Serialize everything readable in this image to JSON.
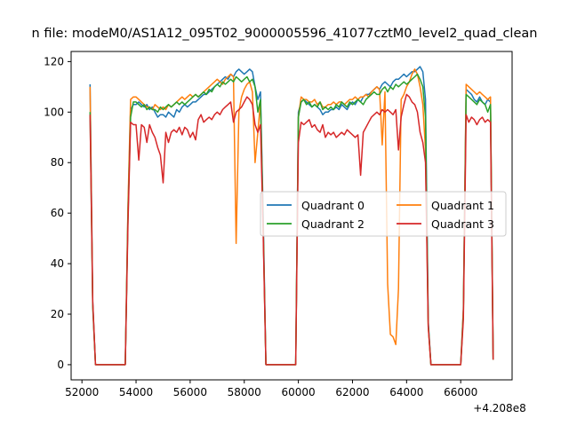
{
  "chart_data": {
    "type": "line",
    "title": "n file: modeM0/AS1A12_095T02_9000005596_41077cztM0_level2_quad_clean",
    "xlabel": "",
    "ylabel": "",
    "x_offset_label": "+4.208e8",
    "xlim": [
      51600,
      67900
    ],
    "ylim": [
      -6,
      124
    ],
    "xticks": [
      52000,
      54000,
      56000,
      58000,
      60000,
      62000,
      64000,
      66000
    ],
    "xtick_labels": [
      "52000",
      "54000",
      "56000",
      "58000",
      "60000",
      "62000",
      "64000",
      "66000"
    ],
    "yticks": [
      0,
      20,
      40,
      60,
      80,
      100,
      120
    ],
    "ytick_labels": [
      "0",
      "20",
      "40",
      "60",
      "80",
      "100",
      "120"
    ],
    "grid": false,
    "legend_position": "center-right",
    "legend_columns": 2,
    "series": [
      {
        "name": "Quadrant 0",
        "color": "#1f77b4",
        "x": [
          52300,
          52400,
          52500,
          53000,
          53600,
          53700,
          53800,
          53900,
          54000,
          54100,
          54200,
          54300,
          54400,
          54500,
          54600,
          54700,
          54800,
          54900,
          55000,
          55100,
          55200,
          55300,
          55400,
          55500,
          55600,
          55700,
          55800,
          55900,
          56000,
          56100,
          56200,
          56300,
          56400,
          56500,
          56600,
          56700,
          56800,
          56900,
          57000,
          57100,
          57200,
          57300,
          57400,
          57500,
          57600,
          57700,
          57800,
          57900,
          58000,
          58100,
          58200,
          58300,
          58400,
          58500,
          58600,
          58700,
          58800,
          59900,
          60000,
          60100,
          60200,
          60300,
          60400,
          60500,
          60600,
          60700,
          60800,
          60900,
          61000,
          61100,
          61200,
          61300,
          61400,
          61500,
          61600,
          61700,
          61800,
          61900,
          62000,
          62100,
          62200,
          62300,
          62400,
          62500,
          62600,
          62700,
          62800,
          62900,
          63000,
          63100,
          63200,
          63300,
          63400,
          63500,
          63600,
          63700,
          63800,
          63900,
          64000,
          64100,
          64200,
          64300,
          64400,
          64500,
          64600,
          64700,
          64800,
          64900,
          65000,
          65100,
          65200,
          66000,
          66100,
          66200,
          66300,
          66400,
          66500,
          66600,
          66700,
          66800,
          66900,
          67000,
          67100,
          67200
        ],
        "values": [
          111,
          25,
          0,
          0,
          0,
          60,
          101,
          103,
          103,
          104,
          103,
          102,
          103,
          101,
          102,
          100,
          98,
          99,
          99,
          98,
          100,
          99,
          98,
          101,
          100,
          102,
          103,
          102,
          103,
          104,
          104,
          105,
          106,
          107,
          107,
          108,
          109,
          110,
          111,
          112,
          113,
          114,
          113,
          115,
          114,
          116,
          117,
          116,
          115,
          116,
          117,
          116,
          110,
          105,
          108,
          60,
          0,
          0,
          100,
          104,
          105,
          104,
          103,
          102,
          103,
          102,
          101,
          99,
          100,
          100,
          101,
          101,
          102,
          101,
          103,
          102,
          101,
          103,
          104,
          103,
          105,
          104,
          106,
          107,
          107,
          108,
          109,
          110,
          109,
          111,
          112,
          111,
          110,
          112,
          113,
          113,
          114,
          115,
          114,
          115,
          116,
          116,
          117,
          118,
          116,
          105,
          17,
          0,
          0,
          0,
          0,
          0,
          22,
          109,
          108,
          107,
          105,
          104,
          106,
          104,
          103,
          105,
          104,
          2
        ],
        "style": "solid"
      },
      {
        "name": "Quadrant 1",
        "color": "#ff7f0e",
        "x": [
          52300,
          52400,
          52500,
          53000,
          53600,
          53700,
          53800,
          53900,
          54000,
          54100,
          54200,
          54300,
          54400,
          54500,
          54600,
          54700,
          54800,
          54900,
          55000,
          55100,
          55200,
          55300,
          55400,
          55500,
          55600,
          55700,
          55800,
          55900,
          56000,
          56100,
          56200,
          56300,
          56400,
          56500,
          56600,
          56700,
          56800,
          56900,
          57000,
          57100,
          57200,
          57300,
          57400,
          57500,
          57600,
          57700,
          57800,
          57900,
          58000,
          58100,
          58200,
          58300,
          58400,
          58500,
          58600,
          58700,
          58800,
          59900,
          60000,
          60100,
          60200,
          60300,
          60400,
          60500,
          60600,
          60700,
          60800,
          60900,
          61000,
          61100,
          61200,
          61300,
          61400,
          61500,
          61600,
          61700,
          61800,
          61900,
          62000,
          62100,
          62200,
          62300,
          62400,
          62500,
          62600,
          62700,
          62800,
          62900,
          63000,
          63100,
          63200,
          63300,
          63400,
          63500,
          63600,
          63700,
          63800,
          63900,
          64000,
          64100,
          64200,
          64300,
          64400,
          64500,
          64600,
          64700,
          64800,
          64900,
          65000,
          65100,
          65200,
          66000,
          66100,
          66200,
          66300,
          66400,
          66500,
          66600,
          66700,
          66800,
          66900,
          67000,
          67100,
          67200
        ],
        "values": [
          110,
          24,
          0,
          0,
          0,
          62,
          105,
          106,
          106,
          105,
          104,
          103,
          102,
          102,
          101,
          103,
          102,
          101,
          102,
          101,
          103,
          102,
          103,
          104,
          105,
          106,
          105,
          106,
          107,
          106,
          107,
          106,
          107,
          108,
          109,
          110,
          111,
          112,
          113,
          112,
          111,
          113,
          114,
          115,
          114,
          48,
          100,
          106,
          109,
          111,
          112,
          108,
          80,
          92,
          104,
          55,
          0,
          0,
          98,
          106,
          105,
          105,
          104,
          104,
          105,
          103,
          104,
          102,
          102,
          103,
          103,
          104,
          103,
          104,
          104,
          103,
          104,
          105,
          105,
          106,
          105,
          106,
          106,
          107,
          106,
          108,
          109,
          110,
          109,
          87,
          108,
          32,
          12,
          11,
          8,
          30,
          105,
          107,
          110,
          112,
          115,
          117,
          115,
          110,
          103,
          85,
          15,
          0,
          0,
          0,
          0,
          0,
          22,
          111,
          110,
          109,
          108,
          107,
          108,
          107,
          106,
          105,
          106,
          2
        ],
        "style": "solid"
      },
      {
        "name": "Quadrant 2",
        "color": "#2ca02c",
        "x": [
          52300,
          52400,
          52500,
          53000,
          53600,
          53700,
          53800,
          53900,
          54000,
          54100,
          54200,
          54300,
          54400,
          54500,
          54600,
          54700,
          54800,
          54900,
          55000,
          55100,
          55200,
          55300,
          55400,
          55500,
          55600,
          55700,
          55800,
          55900,
          56000,
          56100,
          56200,
          56300,
          56400,
          56500,
          56600,
          56700,
          56800,
          56900,
          57000,
          57100,
          57200,
          57300,
          57400,
          57500,
          57600,
          57700,
          57800,
          57900,
          58000,
          58100,
          58200,
          58300,
          58400,
          58500,
          58600,
          58700,
          58800,
          59900,
          60000,
          60100,
          60200,
          60300,
          60400,
          60500,
          60600,
          60700,
          60800,
          60900,
          61000,
          61100,
          61200,
          61300,
          61400,
          61500,
          61600,
          61700,
          61800,
          61900,
          62000,
          62100,
          62200,
          62300,
          62400,
          62500,
          62600,
          62700,
          62800,
          62900,
          63000,
          63100,
          63200,
          63300,
          63400,
          63500,
          63600,
          63700,
          63800,
          63900,
          64000,
          64100,
          64200,
          64300,
          64400,
          64500,
          64600,
          64700,
          64800,
          64900,
          65000,
          65100,
          65200,
          66000,
          66100,
          66200,
          66300,
          66400,
          66500,
          66600,
          66700,
          66800,
          66900,
          67000,
          67100,
          67200
        ],
        "values": [
          100,
          23,
          0,
          0,
          0,
          58,
          98,
          104,
          104,
          103,
          102,
          103,
          101,
          102,
          101,
          101,
          100,
          102,
          101,
          102,
          103,
          102,
          103,
          104,
          103,
          104,
          103,
          104,
          105,
          106,
          107,
          106,
          107,
          108,
          107,
          109,
          108,
          110,
          111,
          110,
          112,
          111,
          112,
          113,
          112,
          114,
          113,
          112,
          113,
          114,
          112,
          113,
          110,
          100,
          105,
          55,
          0,
          0,
          98,
          104,
          105,
          103,
          104,
          102,
          103,
          102,
          104,
          101,
          102,
          101,
          102,
          101,
          103,
          102,
          104,
          103,
          102,
          104,
          103,
          104,
          105,
          104,
          103,
          105,
          106,
          107,
          108,
          107,
          107,
          109,
          110,
          108,
          110,
          109,
          111,
          110,
          111,
          112,
          111,
          112,
          113,
          114,
          115,
          113,
          110,
          98,
          16,
          0,
          0,
          0,
          0,
          0,
          20,
          107,
          106,
          105,
          104,
          103,
          105,
          104,
          103,
          100,
          103,
          2
        ],
        "style": "solid"
      },
      {
        "name": "Quadrant 3",
        "color": "#d62728",
        "x": [
          52300,
          52400,
          52500,
          53000,
          53600,
          53700,
          53800,
          53900,
          54000,
          54100,
          54200,
          54300,
          54400,
          54500,
          54600,
          54700,
          54800,
          54900,
          55000,
          55100,
          55200,
          55300,
          55400,
          55500,
          55600,
          55700,
          55800,
          55900,
          56000,
          56100,
          56200,
          56300,
          56400,
          56500,
          56600,
          56700,
          56800,
          56900,
          57000,
          57100,
          57200,
          57300,
          57400,
          57500,
          57600,
          57700,
          57800,
          57900,
          58000,
          58100,
          58200,
          58300,
          58400,
          58500,
          58600,
          58700,
          58800,
          59900,
          60000,
          60100,
          60200,
          60300,
          60400,
          60500,
          60600,
          60700,
          60800,
          60900,
          61000,
          61100,
          61200,
          61300,
          61400,
          61500,
          61600,
          61700,
          61800,
          61900,
          62000,
          62100,
          62200,
          62300,
          62400,
          62500,
          62600,
          62700,
          62800,
          62900,
          63000,
          63100,
          63200,
          63300,
          63400,
          63500,
          63600,
          63700,
          63800,
          63900,
          64000,
          64100,
          64200,
          64300,
          64400,
          64500,
          64600,
          64700,
          64800,
          64900,
          65000,
          65100,
          65200,
          66000,
          66100,
          66200,
          66300,
          66400,
          66500,
          66600,
          66700,
          66800,
          66900,
          67000,
          67100,
          67200
        ],
        "values": [
          99,
          25,
          0,
          0,
          0,
          55,
          96,
          95,
          95,
          81,
          95,
          94,
          88,
          95,
          92,
          90,
          86,
          83,
          72,
          92,
          88,
          92,
          93,
          92,
          94,
          91,
          94,
          93,
          90,
          92,
          89,
          97,
          99,
          96,
          97,
          98,
          97,
          99,
          100,
          99,
          101,
          102,
          103,
          104,
          96,
          100,
          101,
          102,
          104,
          106,
          105,
          103,
          95,
          92,
          95,
          52,
          0,
          0,
          88,
          96,
          95,
          96,
          97,
          94,
          95,
          93,
          92,
          95,
          90,
          92,
          91,
          92,
          90,
          91,
          92,
          91,
          93,
          92,
          91,
          90,
          91,
          75,
          92,
          94,
          96,
          98,
          99,
          100,
          99,
          101,
          100,
          101,
          100,
          99,
          101,
          85,
          98,
          103,
          107,
          106,
          104,
          103,
          100,
          92,
          88,
          80,
          15,
          0,
          0,
          0,
          0,
          0,
          18,
          99,
          96,
          98,
          97,
          95,
          97,
          98,
          96,
          97,
          96,
          2
        ],
        "style": "solid"
      }
    ]
  }
}
